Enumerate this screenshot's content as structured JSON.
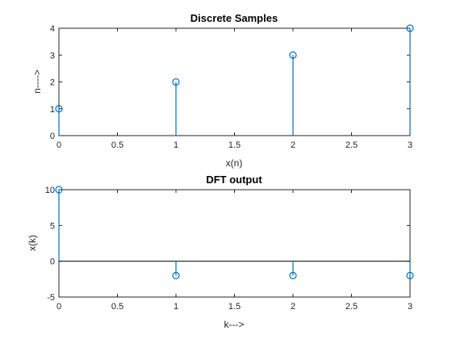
{
  "chart_data": [
    {
      "type": "stem",
      "title": "Discrete Samples",
      "xlabel": "x(n)",
      "ylabel": "n---->",
      "x": [
        0,
        1,
        2,
        3
      ],
      "values": [
        1,
        2,
        3,
        4
      ],
      "xlim": [
        0,
        3
      ],
      "ylim": [
        0,
        4
      ],
      "xticks": [
        0,
        0.5,
        1,
        1.5,
        2,
        2.5,
        3
      ],
      "yticks": [
        0,
        1,
        2,
        3,
        4
      ],
      "grid": false,
      "color": "#0072BD"
    },
    {
      "type": "stem",
      "title": "DFT output",
      "xlabel": "k--->",
      "ylabel": "x(k)",
      "x": [
        0,
        1,
        2,
        3
      ],
      "values": [
        10,
        -2,
        -2,
        -2
      ],
      "xlim": [
        0,
        3
      ],
      "ylim": [
        -5,
        10
      ],
      "xticks": [
        0,
        0.5,
        1,
        1.5,
        2,
        2.5,
        3
      ],
      "yticks": [
        -5,
        0,
        5,
        10
      ],
      "baseline": 0,
      "grid": false,
      "color": "#0072BD"
    }
  ]
}
